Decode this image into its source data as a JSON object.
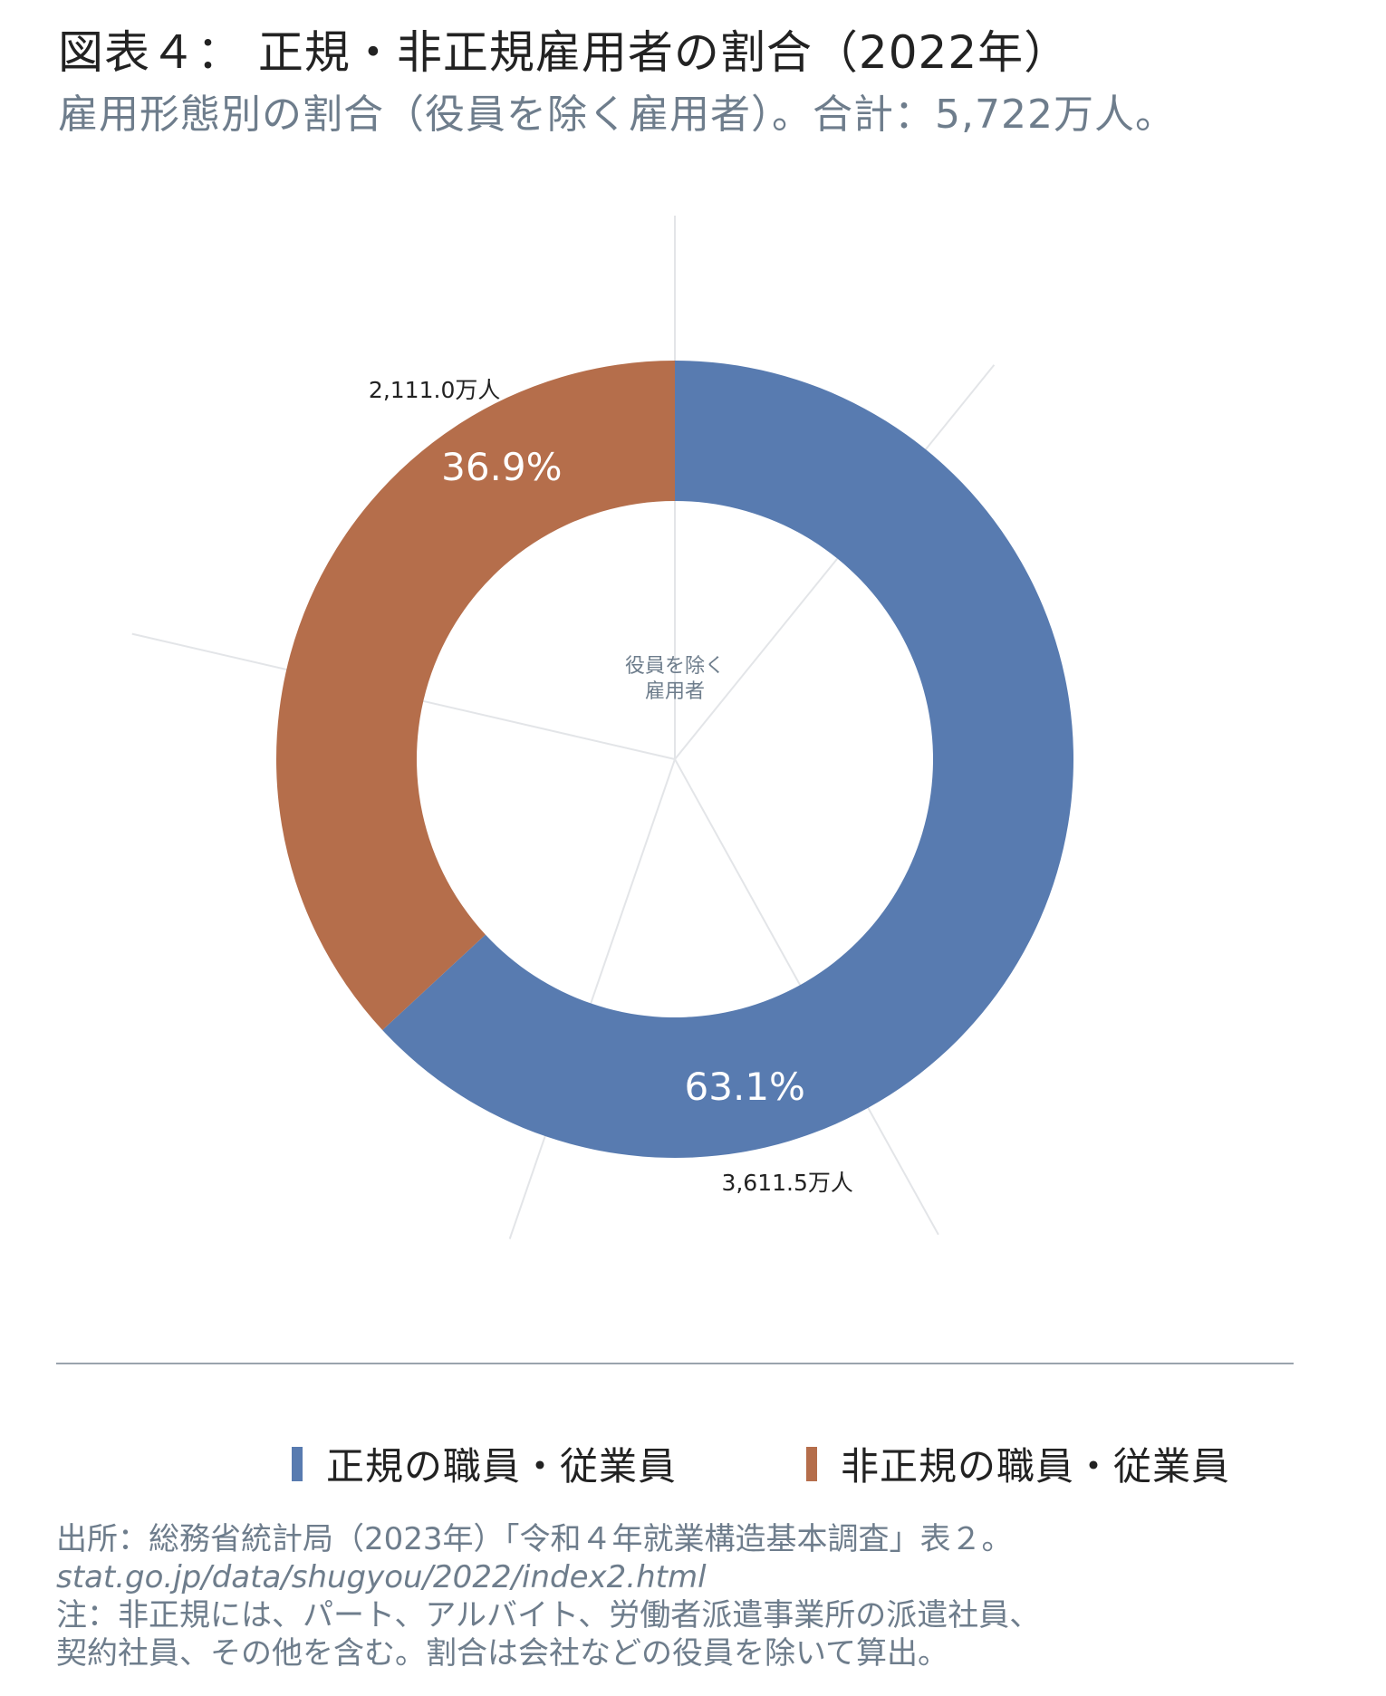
{
  "header": {
    "title": "図表４：  正規・非正規雇用者の割合（2022年）",
    "subtitle": "雇用形態別の割合（役員を除く雇用者）。合計：5,722万人。"
  },
  "chart_data": {
    "type": "pie",
    "style": "donut",
    "center_label": [
      "役員を除く",
      "雇用者"
    ],
    "categories": [
      "正規の職員・従業員",
      "非正規の職員・従業員"
    ],
    "values": [
      3611.5,
      2111.0
    ],
    "value_labels": [
      "3,611.5万人",
      "2,111.0万人"
    ],
    "percent_labels": [
      "63.1%",
      "36.9%"
    ],
    "colors": [
      "#587bb0",
      "#b56e4b"
    ],
    "legend_position": "bottom"
  },
  "footer": {
    "source": "出所：総務省統計局（2023年）「令和４年就業構造基本調査」表２。",
    "url": "stat.go.jp/data/shugyou/2022/index2.html",
    "note_line1": "注：非正規には、パート、アルバイト、労働者派遣事業所の派遣社員、",
    "note_line2": "契約社員、その他を含む。割合は会社などの役員を除いて算出。"
  }
}
